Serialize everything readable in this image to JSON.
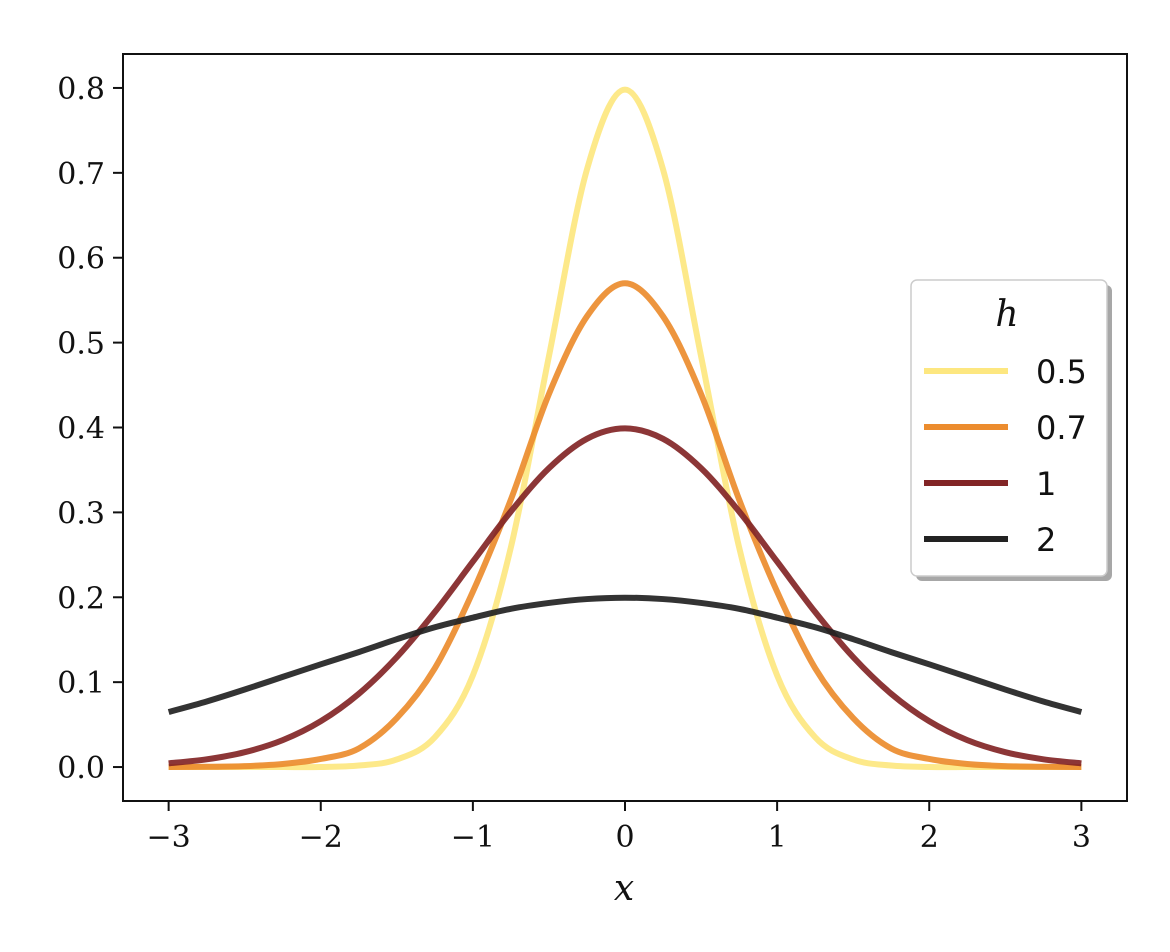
{
  "chart_data": {
    "type": "line",
    "xlabel": "x",
    "ylabel": "",
    "xlim": [
      -3.3,
      3.3
    ],
    "ylim": [
      -0.04,
      0.84
    ],
    "x_ticks": [
      -3,
      -2,
      -1,
      0,
      1,
      2,
      3
    ],
    "x_tick_labels": [
      "−3",
      "−2",
      "−1",
      "0",
      "1",
      "2",
      "3"
    ],
    "y_ticks": [
      0.0,
      0.1,
      0.2,
      0.3,
      0.4,
      0.5,
      0.6,
      0.7,
      0.8
    ],
    "y_tick_labels": [
      "0.0",
      "0.1",
      "0.2",
      "0.3",
      "0.4",
      "0.5",
      "0.6",
      "0.7",
      "0.8"
    ],
    "grid": false,
    "legend": {
      "title": "h",
      "placement": "center-right"
    },
    "x": [
      -3.0,
      -2.75,
      -2.5,
      -2.25,
      -2.0,
      -1.75,
      -1.5,
      -1.25,
      -1.0,
      -0.75,
      -0.5,
      -0.25,
      0.0,
      0.25,
      0.5,
      0.75,
      1.0,
      1.25,
      1.5,
      1.75,
      2.0,
      2.25,
      2.5,
      2.75,
      3.0
    ],
    "series": [
      {
        "name": "0.5",
        "color": "#fde780",
        "values": [
          0.0,
          0.0,
          0.0,
          0.0,
          0.0001,
          0.0018,
          0.0089,
          0.0351,
          0.108,
          0.259,
          0.484,
          0.704,
          0.798,
          0.704,
          0.484,
          0.259,
          0.108,
          0.0351,
          0.0089,
          0.0018,
          0.0001,
          0.0,
          0.0,
          0.0,
          0.0
        ]
      },
      {
        "name": "0.7",
        "color": "#ec8c2e",
        "values": [
          0.0001,
          0.0003,
          0.0011,
          0.0036,
          0.0095,
          0.0219,
          0.0577,
          0.1165,
          0.2066,
          0.3152,
          0.4395,
          0.5309,
          0.5699,
          0.5309,
          0.4395,
          0.3152,
          0.2066,
          0.1165,
          0.0577,
          0.0219,
          0.0095,
          0.0036,
          0.0011,
          0.0003,
          0.0001
        ]
      },
      {
        "name": "1",
        "color": "#822526",
        "values": [
          0.0044,
          0.0091,
          0.0175,
          0.0317,
          0.054,
          0.0863,
          0.1295,
          0.1826,
          0.242,
          0.3011,
          0.3521,
          0.3867,
          0.3989,
          0.3867,
          0.3521,
          0.3011,
          0.242,
          0.1826,
          0.1295,
          0.0863,
          0.054,
          0.0317,
          0.0175,
          0.0091,
          0.0044
        ]
      },
      {
        "name": "2",
        "color": "#222222",
        "values": [
          0.0648,
          0.0772,
          0.0913,
          0.1062,
          0.121,
          0.1354,
          0.1506,
          0.1647,
          0.176,
          0.1864,
          0.1933,
          0.1979,
          0.1995,
          0.1979,
          0.1933,
          0.1864,
          0.176,
          0.1647,
          0.1506,
          0.1354,
          0.121,
          0.1062,
          0.0913,
          0.0772,
          0.0648
        ]
      }
    ]
  }
}
